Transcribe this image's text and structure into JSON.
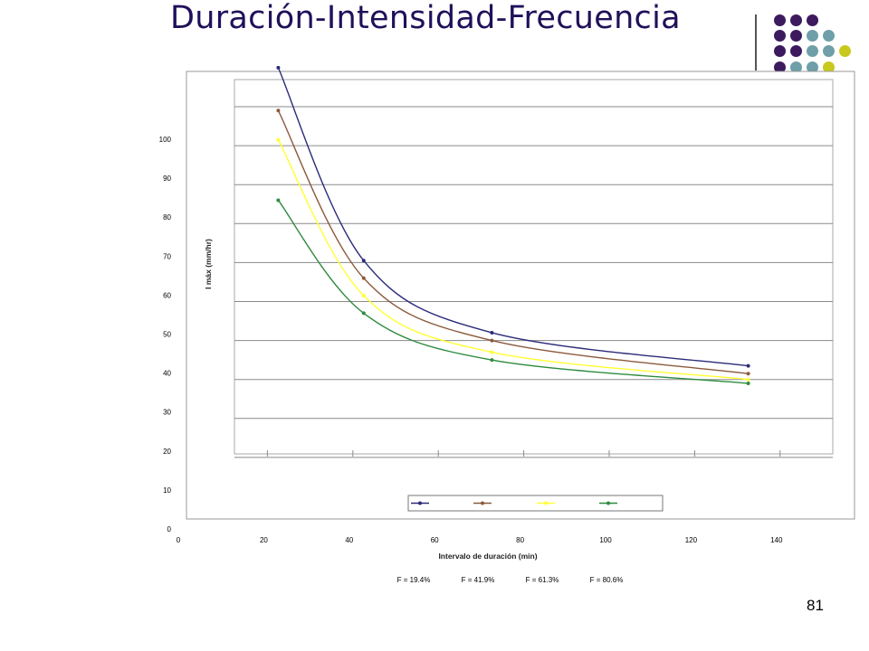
{
  "slide": {
    "title": "Duración-Intensidad-Frecuencia",
    "page_number": "81"
  },
  "decoration": {
    "dots_rows": [
      [
        "purple",
        "purple",
        "purple"
      ],
      [
        "purple",
        "purple",
        "teal",
        "teal"
      ],
      [
        "purple",
        "purple",
        "teal",
        "teal",
        "lime"
      ],
      [
        "purple",
        "teal",
        "teal",
        "lime"
      ]
    ],
    "colors": {
      "purple": "#3d1a5e",
      "teal": "#6f9fa8",
      "lime": "#c8c81e"
    }
  },
  "chart_data": {
    "type": "line",
    "title": "",
    "xlabel": "Intervalo de duración (min)",
    "ylabel": "I máx (mm/hr)",
    "xlim": [
      0,
      140
    ],
    "ylim": [
      0,
      110
    ],
    "x_ticks": [
      "0",
      "20",
      "40",
      "60",
      "80",
      "100",
      "120",
      "140"
    ],
    "y_ticks": [
      "0",
      "10",
      "20",
      "30",
      "40",
      "50",
      "60",
      "70",
      "80",
      "90",
      "100"
    ],
    "grid": true,
    "legend_position": "bottom",
    "series": [
      {
        "name": "F = 19.4%",
        "color": "#2b2b7a",
        "x": [
          20,
          40,
          70,
          130
        ],
        "y": [
          110,
          60.5,
          42,
          33.5
        ]
      },
      {
        "name": "F = 41.9%",
        "color": "#8b5a3c",
        "x": [
          20,
          40,
          70,
          130
        ],
        "y": [
          99,
          56,
          40,
          31.5
        ]
      },
      {
        "name": "F = 61.3%",
        "color": "#ffff33",
        "x": [
          20,
          40,
          70,
          130
        ],
        "y": [
          91.5,
          51.5,
          37,
          30
        ]
      },
      {
        "name": "F = 80.6%",
        "color": "#2e8b3e",
        "x": [
          20,
          40,
          70,
          130
        ],
        "y": [
          76,
          47,
          35,
          29
        ]
      }
    ]
  }
}
